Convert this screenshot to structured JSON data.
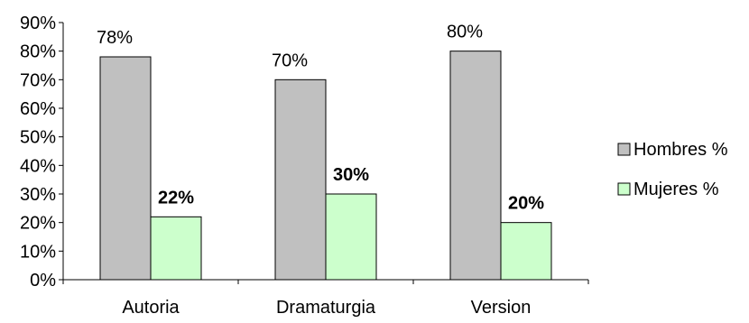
{
  "chart_data": {
    "type": "bar",
    "categories": [
      "Autoria",
      "Dramaturgia",
      "Version"
    ],
    "series": [
      {
        "name": "Hombres %",
        "values": [
          78,
          70,
          80
        ],
        "labels": [
          "78%",
          "70%",
          "80%"
        ],
        "color": "#c0c0c0",
        "label_bold": false
      },
      {
        "name": "Mujeres %",
        "values": [
          22,
          30,
          20
        ],
        "labels": [
          "22%",
          "30%",
          "20%"
        ],
        "color": "#ccffcc",
        "label_bold": true
      }
    ],
    "ylim": [
      0,
      90
    ],
    "y_ticks": [
      "0%",
      "10%",
      "20%",
      "30%",
      "40%",
      "50%",
      "60%",
      "70%",
      "80%",
      "90%"
    ],
    "title": "",
    "xlabel": "",
    "ylabel": "",
    "grid": false,
    "legend": "right"
  }
}
